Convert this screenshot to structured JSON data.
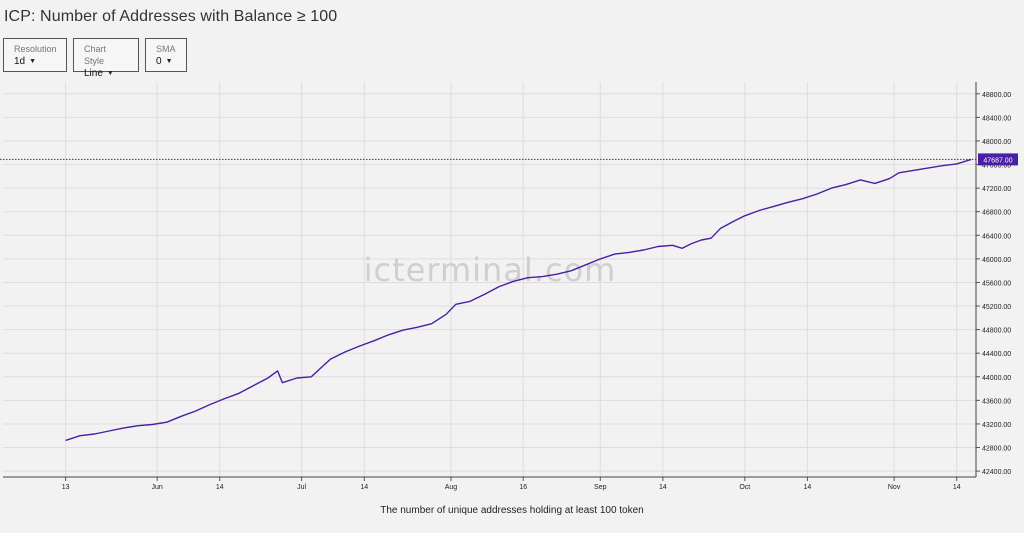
{
  "header": {
    "title": "ICP: Number of Addresses with Balance ≥ 100"
  },
  "controls": [
    {
      "label": "Resolution",
      "value": "1d"
    },
    {
      "label": "Chart Style",
      "value": "Line"
    },
    {
      "label": "SMA",
      "value": "0"
    }
  ],
  "watermark": "icterminal.com",
  "footer": {
    "caption": "The number of unique addresses holding at least 100 token"
  },
  "colors": {
    "line": "#4a1fa3",
    "last_value_badge": "#4a1fa3",
    "grid": "#dddddd",
    "background": "#f2f2f2"
  },
  "icons": {
    "dropdown": "caret-down-icon"
  },
  "chart_data": {
    "type": "line",
    "title": "ICP: Number of Addresses with Balance ≥ 100",
    "xlabel": "",
    "ylabel": "",
    "x_tick_labels": [
      "13",
      "Jun",
      "14",
      "Jul",
      "14",
      "Aug",
      "16",
      "Sep",
      "14",
      "Oct",
      "14",
      "Nov",
      "14"
    ],
    "x_tick_dates": [
      "May 13",
      "Jun 1",
      "Jun 14",
      "Jul 1",
      "Jul 14",
      "Aug 1",
      "Aug 16",
      "Sep 1",
      "Sep 14",
      "Oct 1",
      "Oct 14",
      "Nov 1",
      "Nov 14"
    ],
    "y_ticks": [
      "42400.00",
      "42800.00",
      "43200.00",
      "43600.00",
      "44000.00",
      "44400.00",
      "44800.00",
      "45200.00",
      "45600.00",
      "46000.00",
      "46400.00",
      "46800.00",
      "47200.00",
      "47600.00",
      "48000.00",
      "48400.00",
      "48800.00"
    ],
    "ylim": [
      42300,
      49000
    ],
    "xlim": [
      "Apr 30",
      "Nov 18"
    ],
    "grid": true,
    "last_value": "47687.00",
    "series": [
      {
        "x": [
          "May 13",
          "May 16",
          "May 19",
          "May 22",
          "May 25",
          "May 28",
          "May 31",
          "Jun 3",
          "Jun 6",
          "Jun 9",
          "Jun 12",
          "Jun 15",
          "Jun 18",
          "Jun 21",
          "Jun 24",
          "Jun 26",
          "Jun 27",
          "Jun 30",
          "Jul 3",
          "Jul 5",
          "Jul 7",
          "Jul 10",
          "Jul 13",
          "Jul 16",
          "Jul 19",
          "Jul 22",
          "Jul 25",
          "Jul 28",
          "Jul 31",
          "Aug 2",
          "Aug 5",
          "Aug 8",
          "Aug 11",
          "Aug 14",
          "Aug 17",
          "Aug 20",
          "Aug 23",
          "Aug 26",
          "Aug 29",
          "Sep 1",
          "Sep 4",
          "Sep 7",
          "Sep 10",
          "Sep 13",
          "Sep 16",
          "Sep 18",
          "Sep 20",
          "Sep 22",
          "Sep 24",
          "Sep 26",
          "Sep 29",
          "Oct 1",
          "Oct 4",
          "Oct 7",
          "Oct 10",
          "Oct 13",
          "Oct 16",
          "Oct 19",
          "Oct 22",
          "Oct 25",
          "Oct 28",
          "Oct 31",
          "Nov 2",
          "Nov 5",
          "Nov 8",
          "Nov 11",
          "Nov 14",
          "Nov 17"
        ],
        "y": [
          42920,
          43000,
          43030,
          43080,
          43130,
          43170,
          43190,
          43230,
          43330,
          43420,
          43530,
          43630,
          43720,
          43850,
          43980,
          44100,
          43900,
          43980,
          44000,
          44150,
          44300,
          44420,
          44520,
          44610,
          44710,
          44790,
          44840,
          44900,
          45060,
          45230,
          45280,
          45400,
          45530,
          45620,
          45680,
          45700,
          45740,
          45800,
          45900,
          46000,
          46080,
          46110,
          46150,
          46210,
          46230,
          46180,
          46260,
          46320,
          46350,
          46520,
          46650,
          46730,
          46820,
          46890,
          46960,
          47020,
          47100,
          47200,
          47260,
          47340,
          47280,
          47360,
          47460,
          47500,
          47540,
          47580,
          47610,
          47687
        ]
      }
    ]
  }
}
